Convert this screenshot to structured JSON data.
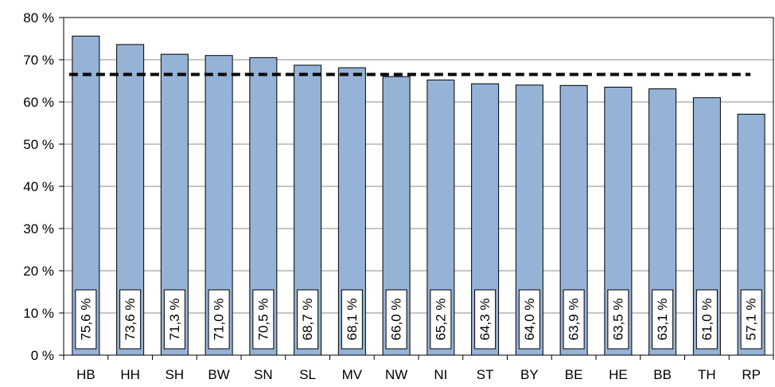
{
  "chart_data": {
    "type": "bar",
    "categories": [
      "HB",
      "HH",
      "SH",
      "BW",
      "SN",
      "SL",
      "MV",
      "NW",
      "NI",
      "ST",
      "BY",
      "BE",
      "HE",
      "BB",
      "TH",
      "RP"
    ],
    "values": [
      75.6,
      73.6,
      71.3,
      71.0,
      70.5,
      68.7,
      68.1,
      66.0,
      65.2,
      64.3,
      64.0,
      63.9,
      63.5,
      63.1,
      61.0,
      57.1
    ],
    "data_labels": [
      "75,6 %",
      "73,6 %",
      "71,3 %",
      "71,0 %",
      "70,5 %",
      "68,7 %",
      "68,1 %",
      "66,0 %",
      "65,2 %",
      "64,3 %",
      "64,0 %",
      "63,9 %",
      "63,5 %",
      "63,1 %",
      "61,0 %",
      "57,1 %"
    ],
    "y_ticks": [
      0,
      10,
      20,
      30,
      40,
      50,
      60,
      70,
      80
    ],
    "y_tick_labels": [
      "0 %",
      "10 %",
      "20 %",
      "30 %",
      "40 %",
      "50 %",
      "60 %",
      "70 %",
      "80 %"
    ],
    "ylim": [
      0,
      80
    ],
    "reference_line": {
      "value": 66.5,
      "style": "dashed"
    },
    "grid": true,
    "bar_color": "#95b3d7",
    "bar_edge_color": "#000000"
  }
}
